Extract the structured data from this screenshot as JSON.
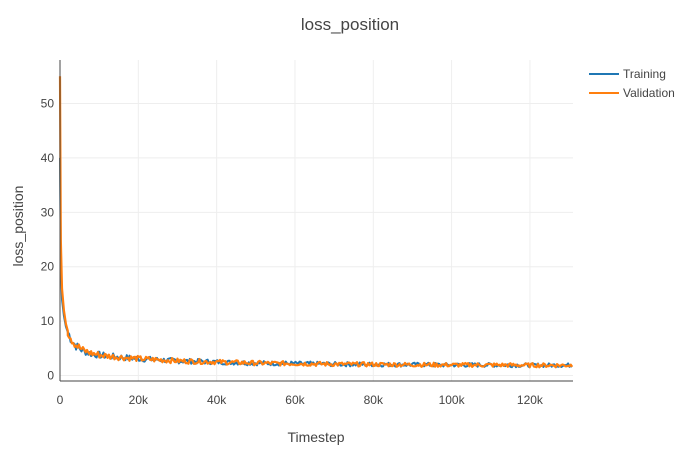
{
  "chart_data": {
    "type": "line",
    "title": "loss_position",
    "xlabel": "Timestep",
    "ylabel": "loss_position",
    "xlim": [
      0,
      131000
    ],
    "ylim": [
      -1,
      58
    ],
    "x_ticks": [
      {
        "value": 0,
        "label": "0"
      },
      {
        "value": 20000,
        "label": "20k"
      },
      {
        "value": 40000,
        "label": "40k"
      },
      {
        "value": 60000,
        "label": "60k"
      },
      {
        "value": 80000,
        "label": "80k"
      },
      {
        "value": 100000,
        "label": "100k"
      },
      {
        "value": 120000,
        "label": "120k"
      }
    ],
    "y_ticks": [
      {
        "value": 0,
        "label": "0"
      },
      {
        "value": 10,
        "label": "10"
      },
      {
        "value": 20,
        "label": "20"
      },
      {
        "value": 30,
        "label": "30"
      },
      {
        "value": 40,
        "label": "40"
      },
      {
        "value": 50,
        "label": "50"
      }
    ],
    "grid": true,
    "legend_position": "top-right",
    "series": [
      {
        "name": "Training",
        "color": "#1f77b4",
        "x": [
          0,
          200,
          500,
          1000,
          1500,
          2000,
          3000,
          4000,
          5000,
          6000,
          8000,
          10000,
          12000,
          15000,
          20000,
          25000,
          30000,
          35000,
          40000,
          50000,
          60000,
          70000,
          80000,
          90000,
          100000,
          110000,
          120000,
          131000
        ],
        "y": [
          40,
          22,
          14,
          11,
          9,
          8,
          6.5,
          5.5,
          5,
          4.5,
          4,
          3.8,
          3.6,
          3.4,
          3.1,
          2.9,
          2.7,
          2.6,
          2.5,
          2.3,
          2.2,
          2.1,
          2.05,
          2,
          1.95,
          1.95,
          1.9,
          1.9
        ]
      },
      {
        "name": "Validation",
        "color": "#ff7f0e",
        "x": [
          0,
          200,
          500,
          1000,
          1500,
          2000,
          3000,
          4000,
          5000,
          6000,
          8000,
          10000,
          12000,
          15000,
          20000,
          25000,
          30000,
          35000,
          40000,
          50000,
          60000,
          70000,
          80000,
          90000,
          100000,
          110000,
          120000,
          131000
        ],
        "y": [
          55,
          25,
          16,
          12,
          9.5,
          8.2,
          6.7,
          5.7,
          5.1,
          4.6,
          4.1,
          3.8,
          3.6,
          3.4,
          3.1,
          2.9,
          2.7,
          2.6,
          2.5,
          2.3,
          2.2,
          2.1,
          2.05,
          2,
          1.95,
          1.95,
          1.9,
          1.9
        ]
      }
    ]
  }
}
